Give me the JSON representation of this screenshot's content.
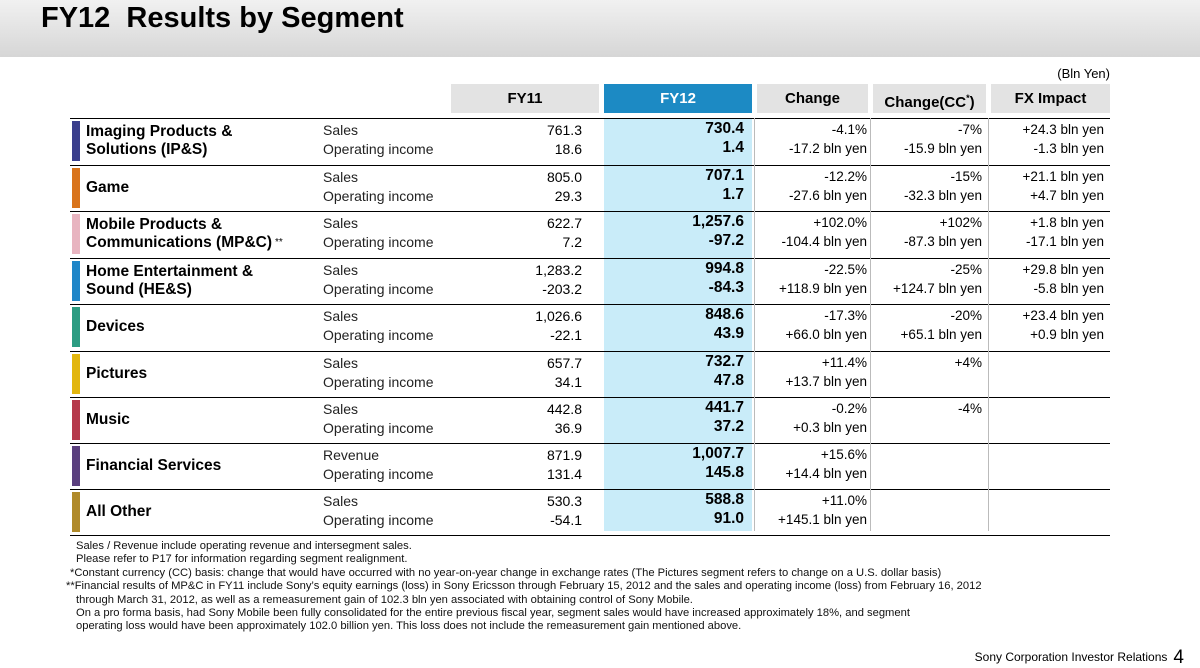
{
  "title": "FY12  Results by Segment",
  "unit": "(Bln Yen)",
  "headers": {
    "fy11": "FY11",
    "fy12": "FY12",
    "change": "Change",
    "change_cc": "Change(CC*)",
    "fx": "FX Impact"
  },
  "segments": [
    {
      "name1": "Imaging Products &",
      "name2": "Solutions (IP&S)",
      "color": "#3a3e8c",
      "rows": [
        {
          "label": "Sales",
          "fy11": "761.3",
          "fy12": "730.4",
          "change": "-4.1%",
          "cc": "-7%",
          "fx": "+24.3 bln yen"
        },
        {
          "label": "Operating income",
          "fy11": "18.6",
          "fy12": "1.4",
          "change": "-17.2 bln yen",
          "cc": "-15.9 bln yen",
          "fx": "-1.3 bln yen"
        }
      ]
    },
    {
      "name1": "Game",
      "name2": "",
      "color": "#d9741c",
      "rows": [
        {
          "label": "Sales",
          "fy11": "805.0",
          "fy12": "707.1",
          "change": "-12.2%",
          "cc": "-15%",
          "fx": "+21.1 bln yen"
        },
        {
          "label": "Operating income",
          "fy11": "29.3",
          "fy12": "1.7",
          "change": "-27.6 bln yen",
          "cc": "-32.3 bln yen",
          "fx": "+4.7 bln yen"
        }
      ]
    },
    {
      "name1": "Mobile Products &",
      "name2": "Communications (MP&C)",
      "note": "**",
      "color": "#e8b4c0",
      "rows": [
        {
          "label": "Sales",
          "fy11": "622.7",
          "fy12": "1,257.6",
          "change": "+102.0%",
          "cc": "+102%",
          "fx": "+1.8 bln yen"
        },
        {
          "label": "Operating income",
          "fy11": "7.2",
          "fy12": "-97.2",
          "change": "-104.4 bln yen",
          "cc": "-87.3 bln yen",
          "fx": "-17.1 bln yen"
        }
      ]
    },
    {
      "name1": "Home Entertainment &",
      "name2": "Sound (HE&S)",
      "color": "#1f86c8",
      "rows": [
        {
          "label": "Sales",
          "fy11": "1,283.2",
          "fy12": "994.8",
          "change": "-22.5%",
          "cc": "-25%",
          "fx": "+29.8 bln yen"
        },
        {
          "label": "Operating income",
          "fy11": "-203.2",
          "fy12": "-84.3",
          "change": "+118.9 bln yen",
          "cc": "+124.7 bln yen",
          "fx": "-5.8 bln yen"
        }
      ]
    },
    {
      "name1": "Devices",
      "name2": "",
      "color": "#2c9c82",
      "rows": [
        {
          "label": "Sales",
          "fy11": "1,026.6",
          "fy12": "848.6",
          "change": "-17.3%",
          "cc": "-20%",
          "fx": "+23.4 bln yen"
        },
        {
          "label": "Operating income",
          "fy11": "-22.1",
          "fy12": "43.9",
          "change": "+66.0 bln yen",
          "cc": "+65.1 bln yen",
          "fx": "+0.9 bln yen"
        }
      ]
    },
    {
      "name1": "Pictures",
      "name2": "",
      "color": "#e2b60e",
      "rows": [
        {
          "label": "Sales",
          "fy11": "657.7",
          "fy12": "732.7",
          "change": "+11.4%",
          "cc": "+4%",
          "fx": ""
        },
        {
          "label": "Operating income",
          "fy11": "34.1",
          "fy12": "47.8",
          "change": "+13.7 bln yen",
          "cc": "",
          "fx": ""
        }
      ]
    },
    {
      "name1": "Music",
      "name2": "",
      "color": "#b5394b",
      "rows": [
        {
          "label": "Sales",
          "fy11": "442.8",
          "fy12": "441.7",
          "change": "-0.2%",
          "cc": "-4%",
          "fx": ""
        },
        {
          "label": "Operating income",
          "fy11": "36.9",
          "fy12": "37.2",
          "change": "+0.3 bln yen",
          "cc": "",
          "fx": ""
        }
      ]
    },
    {
      "name1": "Financial Services",
      "name2": "",
      "color": "#5a3f7e",
      "rows": [
        {
          "label": "Revenue",
          "fy11": "871.9",
          "fy12": "1,007.7",
          "change": "+15.6%",
          "cc": "",
          "fx": ""
        },
        {
          "label": "Operating income",
          "fy11": "131.4",
          "fy12": "145.8",
          "change": "+14.4 bln yen",
          "cc": "",
          "fx": ""
        }
      ]
    },
    {
      "name1": "All Other",
      "name2": "",
      "color": "#b08a2a",
      "rows": [
        {
          "label": "Sales",
          "fy11": "530.3",
          "fy12": "588.8",
          "change": "+11.0%",
          "cc": "",
          "fx": ""
        },
        {
          "label": "Operating income",
          "fy11": "-54.1",
          "fy12": "91.0",
          "change": "+145.1 bln yen",
          "cc": "",
          "fx": ""
        }
      ]
    }
  ],
  "notes": [
    "Sales / Revenue include operating revenue and intersegment sales.",
    "Please refer to P17 for information regarding segment realignment.",
    "*Constant currency (CC) basis: change that would have occurred with no year-on-year change in exchange rates (The Pictures segment refers to change on a U.S. dollar basis)",
    "**Financial results of MP&C in FY11 include Sony’s equity earnings (loss) in Sony Ericsson through February 15, 2012 and the sales and operating income (loss) from February 16, 2012",
    "through March 31, 2012, as well as a remeasurement gain of 102.3 bln yen associated with obtaining control of Sony Mobile.",
    "On a pro forma basis, had Sony Mobile been fully consolidated for the entire previous fiscal year, segment sales would have increased approximately 18%, and segment",
    "operating loss would have been approximately 102.0 billion yen.  This loss does not include the remeasurement gain mentioned above."
  ],
  "footer": {
    "company": "Sony Corporation  Investor Relations",
    "page": "4"
  }
}
